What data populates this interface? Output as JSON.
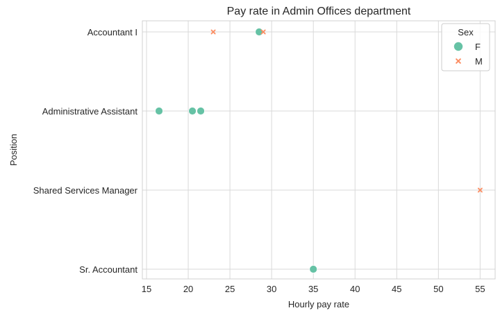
{
  "chart_data": {
    "type": "scatter",
    "title": "Pay rate in Admin Offices department",
    "xlabel": "Hourly pay rate",
    "ylabel": "Position",
    "xlim": [
      14.5,
      56.8
    ],
    "x_ticks": [
      15,
      20,
      25,
      30,
      35,
      40,
      45,
      50,
      55
    ],
    "categories": [
      "Accountant I",
      "Administrative Assistant",
      "Shared Services Manager",
      "Sr. Accountant"
    ],
    "grid": true,
    "legend": {
      "title": "Sex",
      "placement": "top-right"
    },
    "series": [
      {
        "name": "F",
        "marker": "circle",
        "color": "#66c2a5",
        "points": [
          {
            "x": 28.5,
            "y": "Accountant I"
          },
          {
            "x": 16.5,
            "y": "Administrative Assistant"
          },
          {
            "x": 20.5,
            "y": "Administrative Assistant"
          },
          {
            "x": 21.5,
            "y": "Administrative Assistant"
          },
          {
            "x": 35,
            "y": "Sr. Accountant"
          }
        ]
      },
      {
        "name": "M",
        "marker": "x",
        "color": "#fc8d62",
        "points": [
          {
            "x": 23,
            "y": "Accountant I"
          },
          {
            "x": 29,
            "y": "Accountant I"
          },
          {
            "x": 55,
            "y": "Shared Services Manager"
          }
        ]
      }
    ]
  }
}
